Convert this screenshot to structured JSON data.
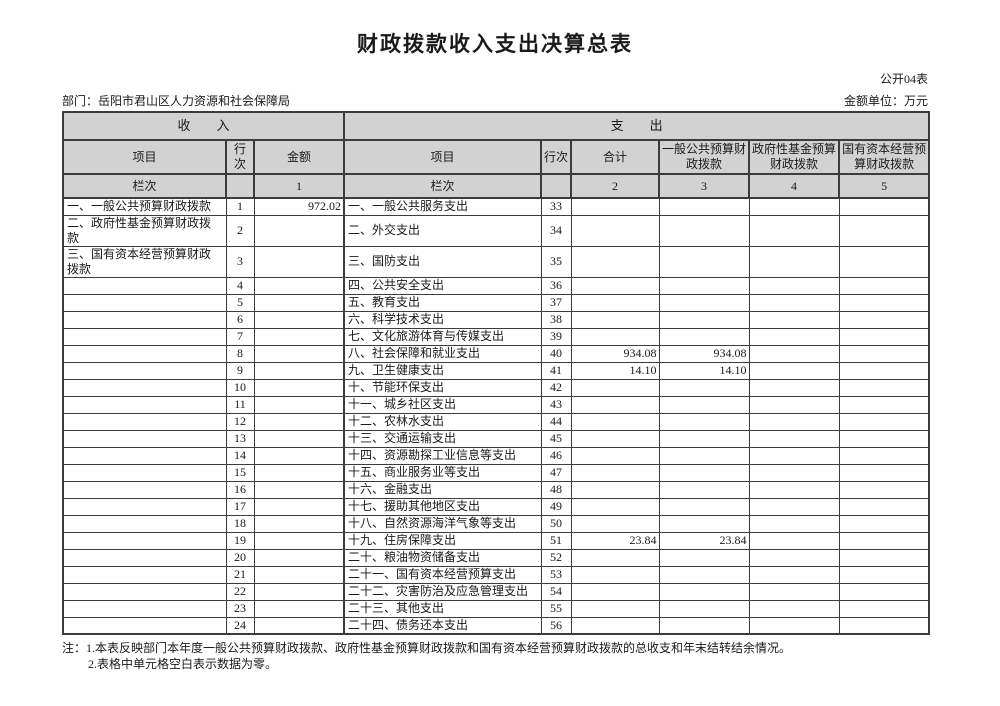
{
  "page": {
    "title": "财政拨款收入支出决算总表",
    "table_code": "公开04表",
    "department": "部门：岳阳市君山区人力资源和社会保障局",
    "unit": "金额单位：万元"
  },
  "table": {
    "income_header": "收　　入",
    "expense_header": "支　　出",
    "income_cols": [
      "项目",
      "行次",
      "金额"
    ],
    "expense_cols": [
      "项目",
      "行次",
      "合计",
      "一般公共预算财政拨款",
      "政府性基金预算财政拨款",
      "国有资本经营预算财政拨款"
    ],
    "lanci_row": [
      "栏次",
      "",
      "1",
      "栏次",
      "",
      "2",
      "3",
      "4",
      "5"
    ],
    "rows": [
      {
        "income_item": "一、一般公共预算财政拨款",
        "income_line": "1",
        "income_amount": "972.02",
        "expense_item": "一、一般公共服务支出",
        "expense_line": "33",
        "total": "",
        "general_budget": "",
        "gov_fund": "",
        "state_capital": ""
      },
      {
        "income_item": "二、政府性基金预算财政拨款",
        "income_line": "2",
        "income_amount": "",
        "expense_item": "二、外交支出",
        "expense_line": "34",
        "total": "",
        "general_budget": "",
        "gov_fund": "",
        "state_capital": ""
      },
      {
        "income_item": "三、国有资本经营预算财政拨款",
        "income_line": "3",
        "income_amount": "",
        "expense_item": "三、国防支出",
        "expense_line": "35",
        "total": "",
        "general_budget": "",
        "gov_fund": "",
        "state_capital": ""
      },
      {
        "income_item": "",
        "income_line": "4",
        "income_amount": "",
        "expense_item": "四、公共安全支出",
        "expense_line": "36",
        "total": "",
        "general_budget": "",
        "gov_fund": "",
        "state_capital": ""
      },
      {
        "income_item": "",
        "income_line": "5",
        "income_amount": "",
        "expense_item": "五、教育支出",
        "expense_line": "37",
        "total": "",
        "general_budget": "",
        "gov_fund": "",
        "state_capital": ""
      },
      {
        "income_item": "",
        "income_line": "6",
        "income_amount": "",
        "expense_item": "六、科学技术支出",
        "expense_line": "38",
        "total": "",
        "general_budget": "",
        "gov_fund": "",
        "state_capital": ""
      },
      {
        "income_item": "",
        "income_line": "7",
        "income_amount": "",
        "expense_item": "七、文化旅游体育与传媒支出",
        "expense_line": "39",
        "total": "",
        "general_budget": "",
        "gov_fund": "",
        "state_capital": ""
      },
      {
        "income_item": "",
        "income_line": "8",
        "income_amount": "",
        "expense_item": "八、社会保障和就业支出",
        "expense_line": "40",
        "total": "934.08",
        "general_budget": "934.08",
        "gov_fund": "",
        "state_capital": ""
      },
      {
        "income_item": "",
        "income_line": "9",
        "income_amount": "",
        "expense_item": "九、卫生健康支出",
        "expense_line": "41",
        "total": "14.10",
        "general_budget": "14.10",
        "gov_fund": "",
        "state_capital": ""
      },
      {
        "income_item": "",
        "income_line": "10",
        "income_amount": "",
        "expense_item": "十、节能环保支出",
        "expense_line": "42",
        "total": "",
        "general_budget": "",
        "gov_fund": "",
        "state_capital": ""
      },
      {
        "income_item": "",
        "income_line": "11",
        "income_amount": "",
        "expense_item": "十一、城乡社区支出",
        "expense_line": "43",
        "total": "",
        "general_budget": "",
        "gov_fund": "",
        "state_capital": ""
      },
      {
        "income_item": "",
        "income_line": "12",
        "income_amount": "",
        "expense_item": "十二、农林水支出",
        "expense_line": "44",
        "total": "",
        "general_budget": "",
        "gov_fund": "",
        "state_capital": ""
      },
      {
        "income_item": "",
        "income_line": "13",
        "income_amount": "",
        "expense_item": "十三、交通运输支出",
        "expense_line": "45",
        "total": "",
        "general_budget": "",
        "gov_fund": "",
        "state_capital": ""
      },
      {
        "income_item": "",
        "income_line": "14",
        "income_amount": "",
        "expense_item": "十四、资源勘探工业信息等支出",
        "expense_line": "46",
        "total": "",
        "general_budget": "",
        "gov_fund": "",
        "state_capital": ""
      },
      {
        "income_item": "",
        "income_line": "15",
        "income_amount": "",
        "expense_item": "十五、商业服务业等支出",
        "expense_line": "47",
        "total": "",
        "general_budget": "",
        "gov_fund": "",
        "state_capital": ""
      },
      {
        "income_item": "",
        "income_line": "16",
        "income_amount": "",
        "expense_item": "十六、金融支出",
        "expense_line": "48",
        "total": "",
        "general_budget": "",
        "gov_fund": "",
        "state_capital": ""
      },
      {
        "income_item": "",
        "income_line": "17",
        "income_amount": "",
        "expense_item": "十七、援助其他地区支出",
        "expense_line": "49",
        "total": "",
        "general_budget": "",
        "gov_fund": "",
        "state_capital": ""
      },
      {
        "income_item": "",
        "income_line": "18",
        "income_amount": "",
        "expense_item": "十八、自然资源海洋气象等支出",
        "expense_line": "50",
        "total": "",
        "general_budget": "",
        "gov_fund": "",
        "state_capital": ""
      },
      {
        "income_item": "",
        "income_line": "19",
        "income_amount": "",
        "expense_item": "十九、住房保障支出",
        "expense_line": "51",
        "total": "23.84",
        "general_budget": "23.84",
        "gov_fund": "",
        "state_capital": ""
      },
      {
        "income_item": "",
        "income_line": "20",
        "income_amount": "",
        "expense_item": "二十、粮油物资储备支出",
        "expense_line": "52",
        "total": "",
        "general_budget": "",
        "gov_fund": "",
        "state_capital": ""
      },
      {
        "income_item": "",
        "income_line": "21",
        "income_amount": "",
        "expense_item": "二十一、国有资本经营预算支出",
        "expense_line": "53",
        "total": "",
        "general_budget": "",
        "gov_fund": "",
        "state_capital": ""
      },
      {
        "income_item": "",
        "income_line": "22",
        "income_amount": "",
        "expense_item": "二十二、灾害防治及应急管理支出",
        "expense_line": "54",
        "total": "",
        "general_budget": "",
        "gov_fund": "",
        "state_capital": ""
      },
      {
        "income_item": "",
        "income_line": "23",
        "income_amount": "",
        "expense_item": "二十三、其他支出",
        "expense_line": "55",
        "total": "",
        "general_budget": "",
        "gov_fund": "",
        "state_capital": ""
      },
      {
        "income_item": "",
        "income_line": "24",
        "income_amount": "",
        "expense_item": "二十四、债务还本支出",
        "expense_line": "56",
        "total": "",
        "general_budget": "",
        "gov_fund": "",
        "state_capital": ""
      }
    ]
  },
  "notes": [
    "注：1.本表反映部门本年度一般公共预算财政拨款、政府性基金预算财政拨款和国有资本经营预算财政拨款的总收支和年末结转结余情况。",
    "2.表格中单元格空白表示数据为零。"
  ]
}
